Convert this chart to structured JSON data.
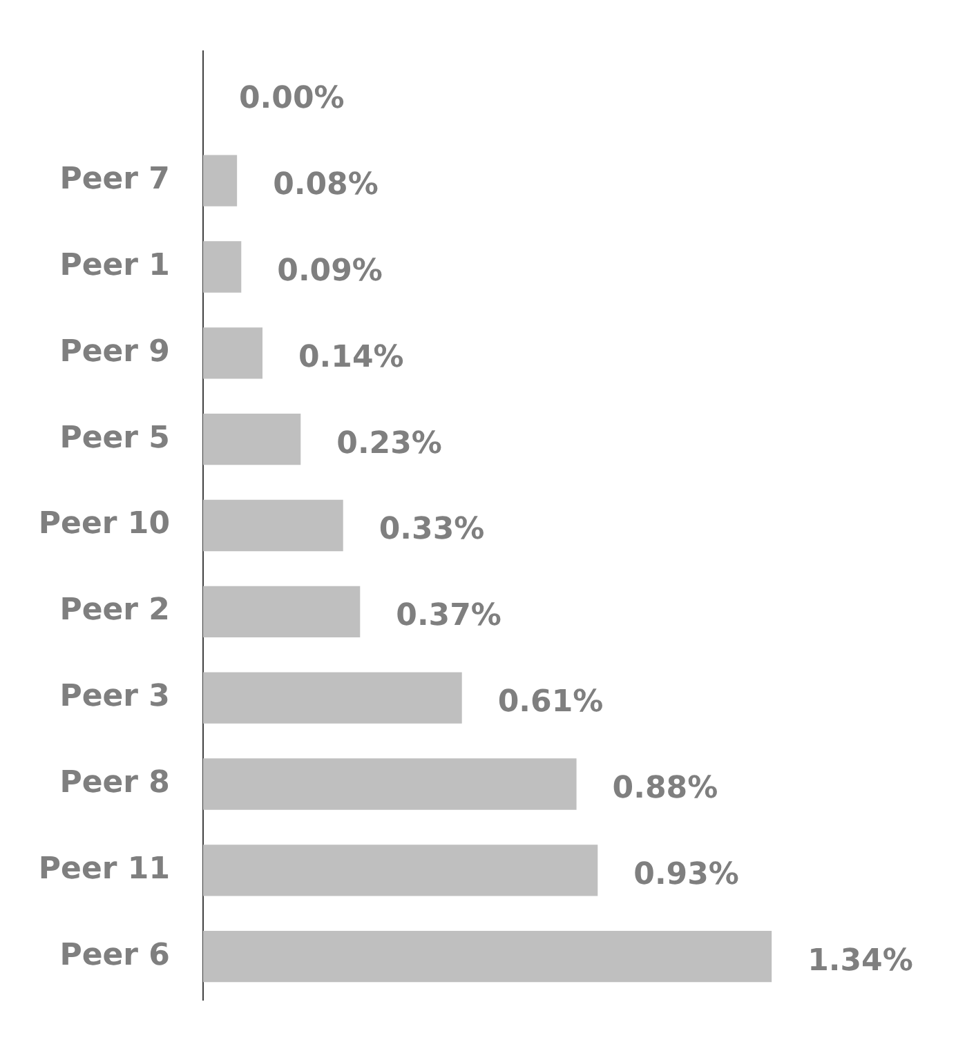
{
  "chart_data": {
    "type": "bar",
    "orientation": "horizontal",
    "categories": [
      null,
      "Peer 7",
      "Peer 1",
      "Peer 9",
      "Peer 5",
      "Peer 10",
      "Peer 2",
      "Peer 3",
      "Peer 8",
      "Peer 11",
      "Peer 6"
    ],
    "values": [
      0.0,
      0.08,
      0.09,
      0.14,
      0.23,
      0.33,
      0.37,
      0.61,
      0.88,
      0.93,
      1.34
    ],
    "value_labels": [
      "0.00%",
      "0.08%",
      "0.09%",
      "0.14%",
      "0.23%",
      "0.33%",
      "0.37%",
      "0.61%",
      "0.88%",
      "0.93%",
      "1.34%"
    ],
    "color": "#bfbfbf",
    "tick_labels": "y"
  }
}
